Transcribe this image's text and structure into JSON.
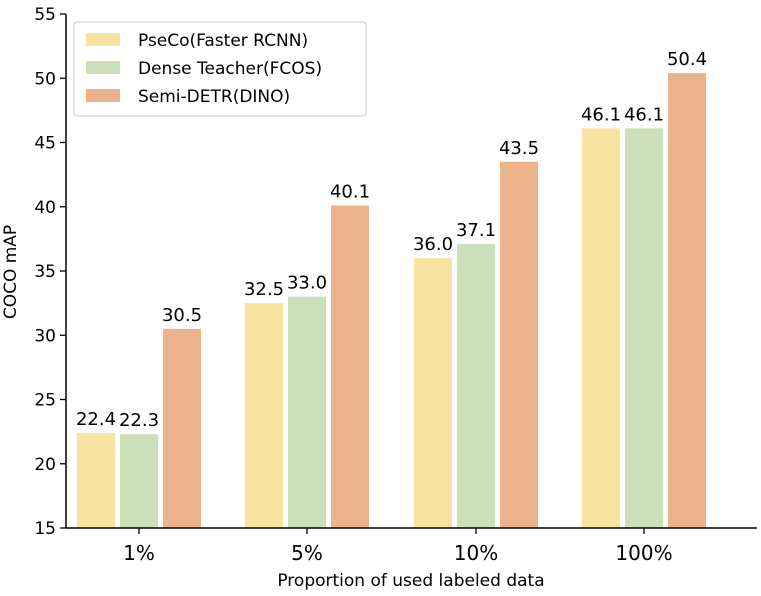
{
  "chart_data": {
    "type": "bar",
    "categories": [
      "1%",
      "5%",
      "10%",
      "100%"
    ],
    "series": [
      {
        "name": "PseCo(Faster RCNN)",
        "color": "#f9e3a1",
        "values": [
          22.4,
          32.5,
          36.0,
          46.1
        ],
        "labels": [
          "22.4",
          "32.5",
          "36.0",
          "46.1"
        ]
      },
      {
        "name": "Dense Teacher(FCOS)",
        "color": "#cbe0b8",
        "values": [
          22.3,
          33.0,
          37.1,
          46.1
        ],
        "labels": [
          "22.3",
          "33.0",
          "37.1",
          "46.1"
        ]
      },
      {
        "name": "Semi-DETR(DINO)",
        "color": "#ebb38b",
        "values": [
          30.5,
          40.1,
          43.5,
          50.4
        ],
        "labels": [
          "30.5",
          "40.1",
          "43.5",
          "50.4"
        ]
      }
    ],
    "xlabel": "Proportion of used labeled data",
    "ylabel": "COCO mAP",
    "ylim": [
      15,
      55
    ],
    "yticks": [
      15,
      20,
      25,
      30,
      35,
      40,
      45,
      50,
      55
    ],
    "legend_position": "top-left",
    "grid": false
  }
}
